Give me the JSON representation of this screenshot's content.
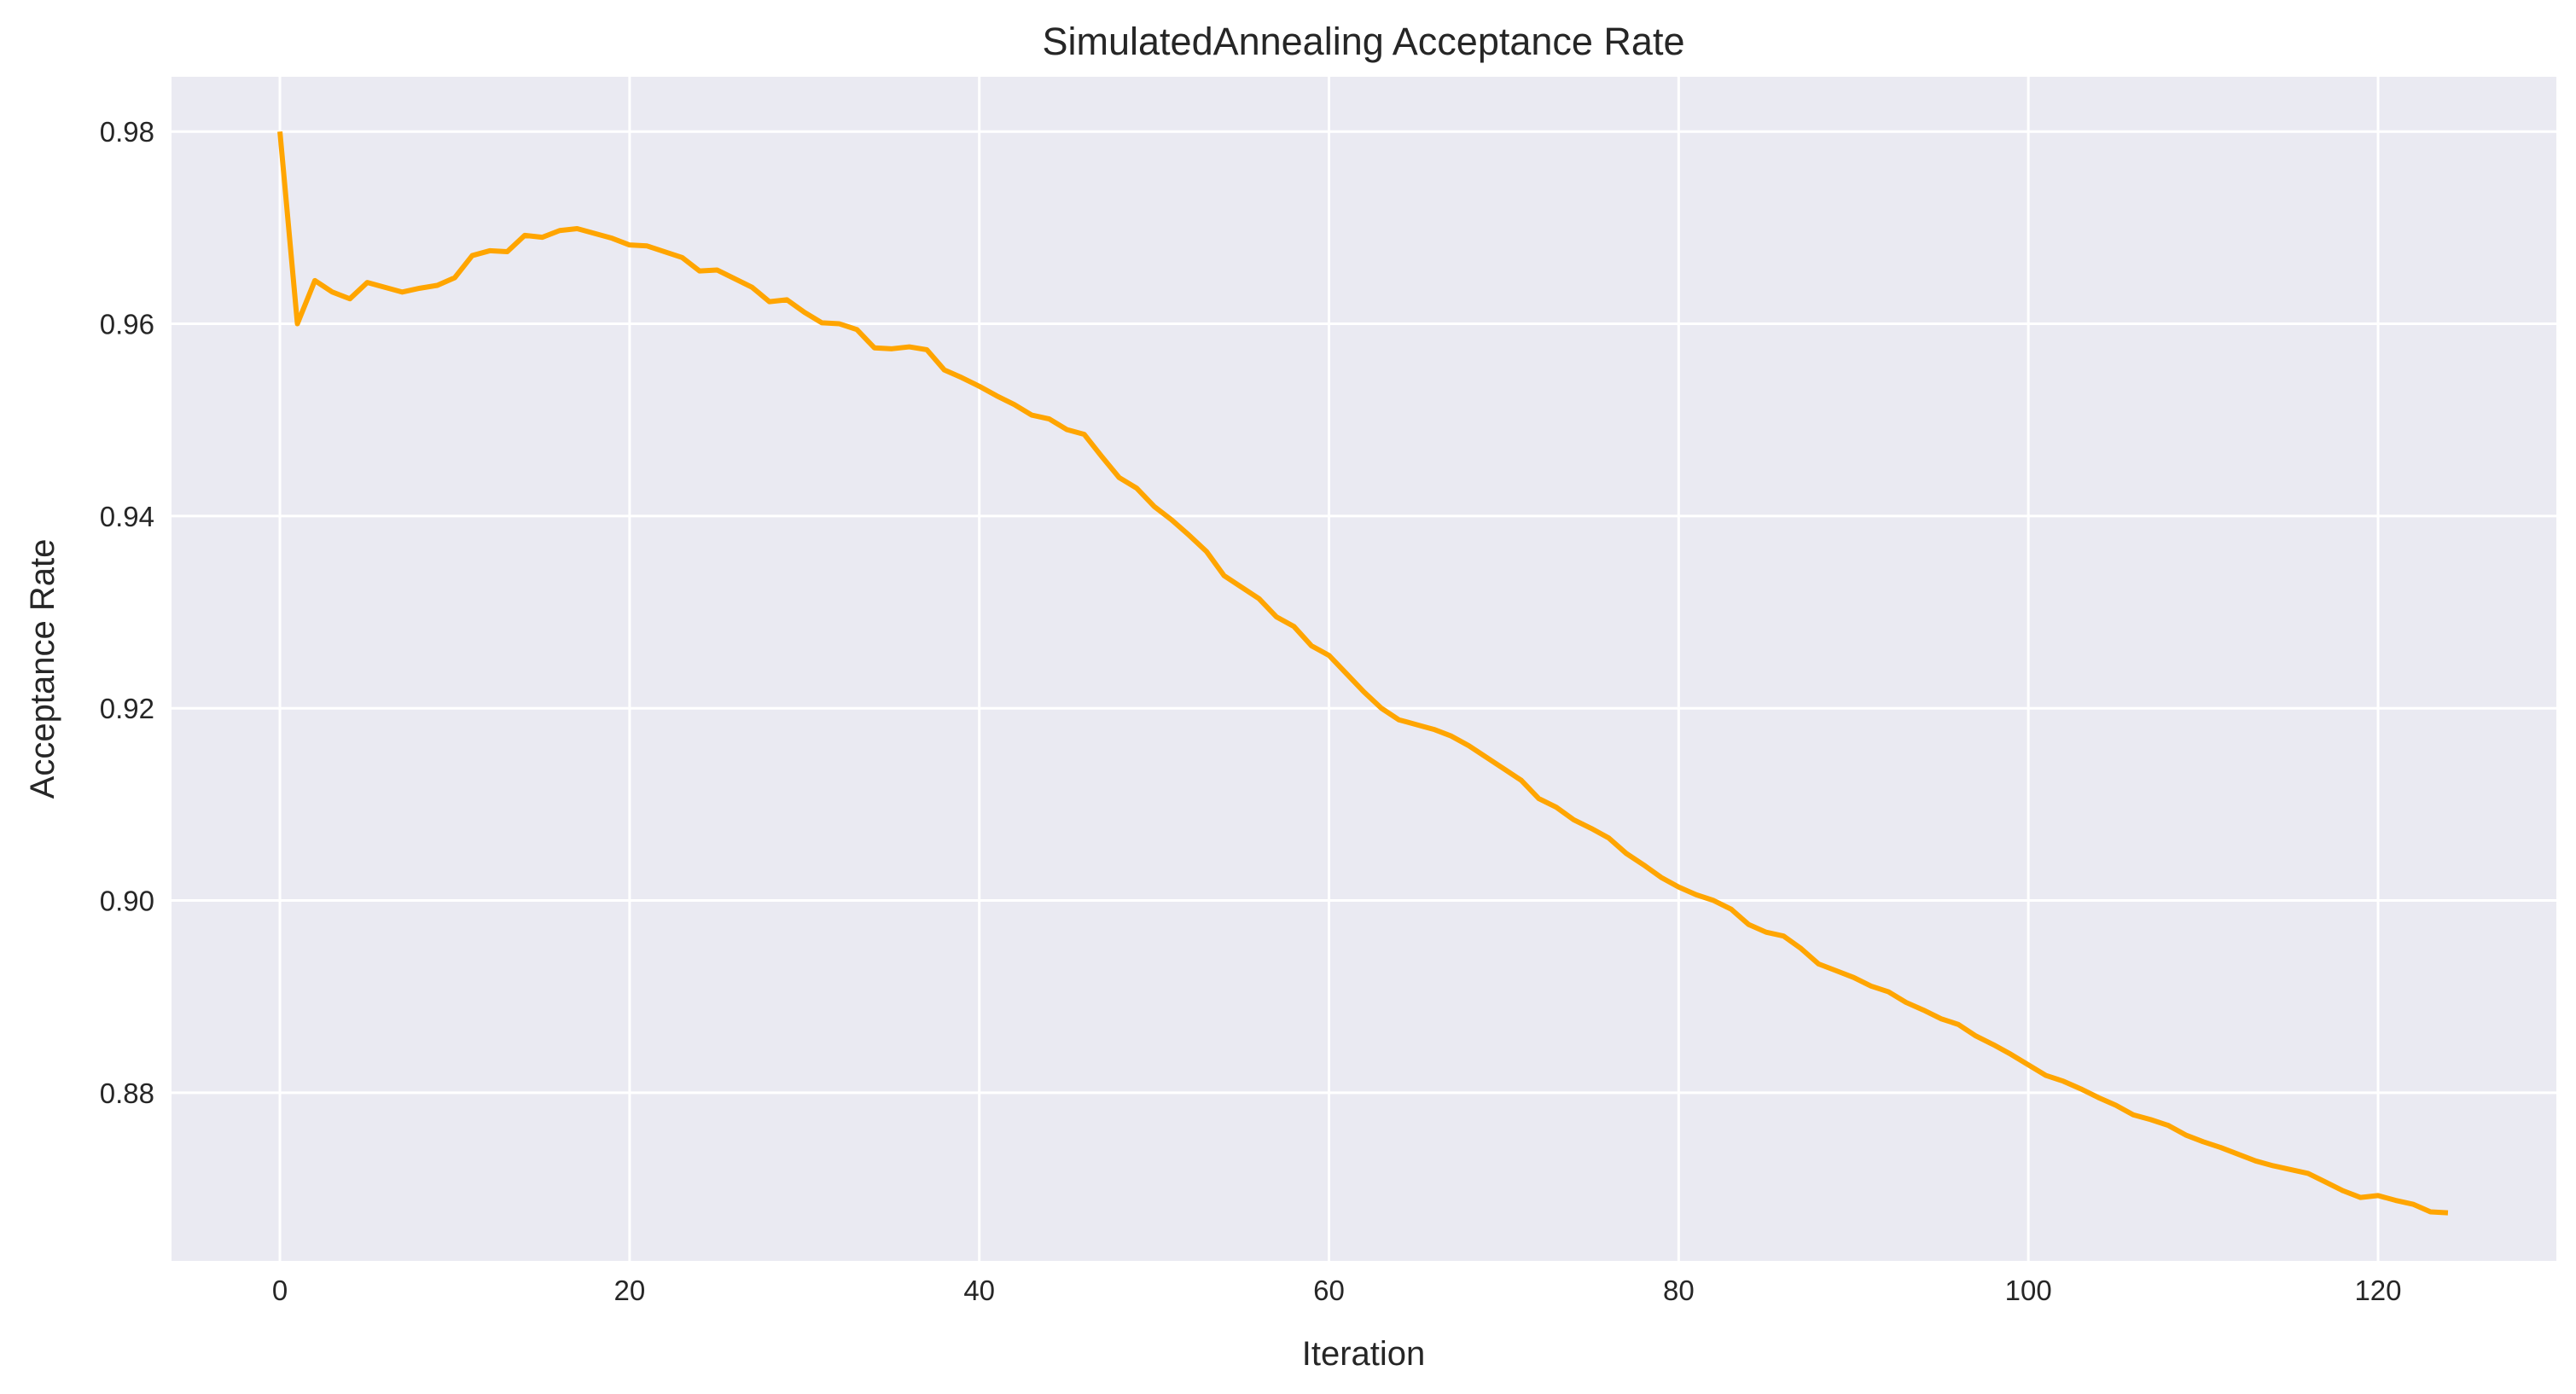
{
  "chart_data": {
    "type": "line",
    "title": "SimulatedAnnealing Acceptance Rate",
    "xlabel": "Iteration",
    "ylabel": "Acceptance Rate",
    "xlim": [
      -6.2,
      130.2
    ],
    "ylim": [
      0.8625,
      0.9857
    ],
    "xticks": [
      0,
      20,
      40,
      60,
      80,
      100,
      120
    ],
    "yticks": [
      0.88,
      0.9,
      0.92,
      0.94,
      0.96,
      0.98
    ],
    "xtick_labels": [
      "0",
      "20",
      "40",
      "60",
      "80",
      "100",
      "120"
    ],
    "ytick_labels": [
      "0.88",
      "0.90",
      "0.92",
      "0.94",
      "0.96",
      "0.98"
    ],
    "grid": true,
    "colors": {
      "background": "#eaeaf2",
      "grid": "#ffffff",
      "line": "#ffa500"
    },
    "series": [
      {
        "color": "#ffa500",
        "x": [
          0,
          1,
          2,
          3,
          4,
          5,
          6,
          7,
          8,
          9,
          10,
          11,
          12,
          13,
          14,
          15,
          16,
          17,
          18,
          19,
          20,
          21,
          22,
          23,
          24,
          25,
          26,
          27,
          28,
          29,
          30,
          31,
          32,
          33,
          34,
          35,
          36,
          37,
          38,
          39,
          40,
          41,
          42,
          43,
          44,
          45,
          46,
          47,
          48,
          49,
          50,
          51,
          52,
          53,
          54,
          55,
          56,
          57,
          58,
          59,
          60,
          61,
          62,
          63,
          64,
          65,
          66,
          67,
          68,
          69,
          70,
          71,
          72,
          73,
          74,
          75,
          76,
          77,
          78,
          79,
          80,
          81,
          82,
          83,
          84,
          85,
          86,
          87,
          88,
          89,
          90,
          91,
          92,
          93,
          94,
          95,
          96,
          97,
          98,
          99,
          100,
          101,
          102,
          103,
          104,
          105,
          106,
          107,
          108,
          109,
          110,
          111,
          112,
          113,
          114,
          115,
          116,
          117,
          118,
          119,
          120,
          121,
          122,
          123,
          124
        ],
        "y": [
          0.98,
          0.96,
          0.9645,
          0.9633,
          0.9626,
          0.9643,
          0.9638,
          0.9633,
          0.9637,
          0.964,
          0.9648,
          0.9671,
          0.9676,
          0.9675,
          0.9692,
          0.969,
          0.9697,
          0.9699,
          0.9694,
          0.9689,
          0.9682,
          0.9681,
          0.9675,
          0.9669,
          0.9655,
          0.9656,
          0.9647,
          0.9638,
          0.9623,
          0.9625,
          0.9612,
          0.9601,
          0.96,
          0.9594,
          0.9575,
          0.9574,
          0.9576,
          0.9573,
          0.9552,
          0.9544,
          0.9535,
          0.9525,
          0.9516,
          0.9505,
          0.9501,
          0.949,
          0.9485,
          0.9462,
          0.944,
          0.9429,
          0.941,
          0.9396,
          0.938,
          0.9363,
          0.9338,
          0.9326,
          0.9314,
          0.9295,
          0.9285,
          0.9265,
          0.9255,
          0.9236,
          0.9217,
          0.92,
          0.9188,
          0.9183,
          0.9178,
          0.9171,
          0.9161,
          0.9149,
          0.9137,
          0.9125,
          0.9106,
          0.9097,
          0.9084,
          0.9075,
          0.9065,
          0.9049,
          0.9037,
          0.9024,
          0.9014,
          0.9006,
          0.9,
          0.8991,
          0.8975,
          0.8967,
          0.8963,
          0.895,
          0.8934,
          0.8927,
          0.892,
          0.8911,
          0.8905,
          0.8894,
          0.8886,
          0.8877,
          0.8871,
          0.8859,
          0.885,
          0.884,
          0.8829,
          0.8818,
          0.8812,
          0.8804,
          0.8795,
          0.8787,
          0.8777,
          0.8772,
          0.8766,
          0.8756,
          0.8749,
          0.8743,
          0.8736,
          0.8729,
          0.8724,
          0.872,
          0.8716,
          0.8707,
          0.8698,
          0.8691,
          0.8693,
          0.8688,
          0.8684,
          0.8676,
          0.8675
        ]
      }
    ]
  }
}
